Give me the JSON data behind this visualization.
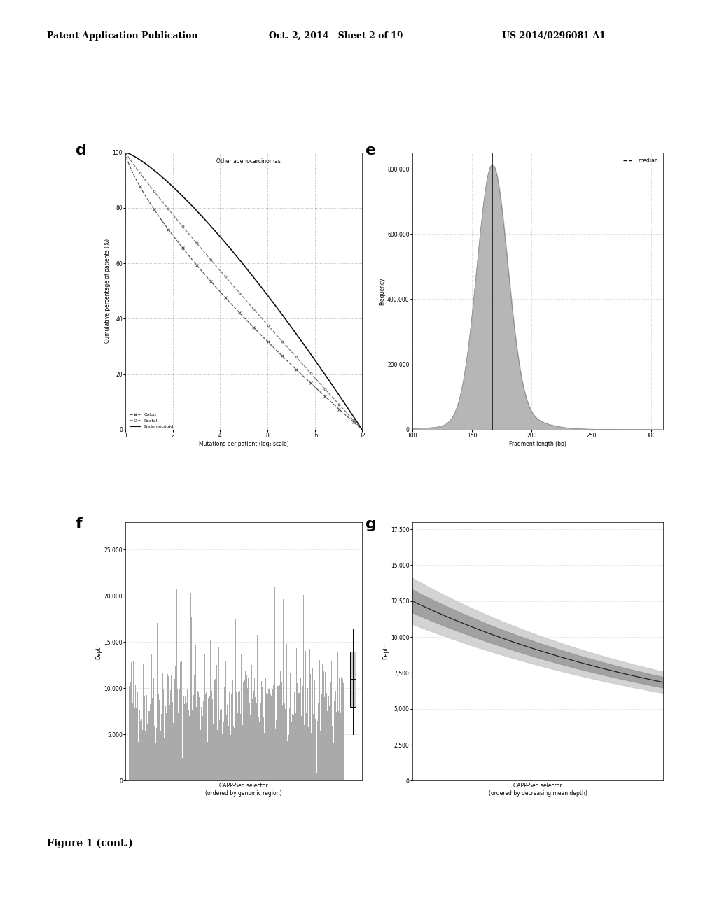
{
  "page_title_left": "Patent Application Publication",
  "page_title_mid": "Oct. 2, 2014   Sheet 2 of 19",
  "page_title_right": "US 2014/0296081 A1",
  "figure_label": "Figure 1 (cont.)",
  "bg_color": "#ffffff",
  "text_color": "#000000",
  "panel_d": {
    "label": "d",
    "title": "Other adenocarcinomas",
    "xlabel": "Mutations per patient (log₂ scale)",
    "ylabel": "Cumulative percentage of patients (%)",
    "yticks": [
      0,
      20,
      40,
      60,
      80,
      100
    ],
    "xticks": [
      1,
      2,
      4,
      8,
      16,
      32
    ],
    "xlim": [
      1,
      32
    ],
    "ylim": [
      0,
      100
    ],
    "legend": [
      "Colon",
      "Rectal",
      "Endometrioid"
    ]
  },
  "panel_e": {
    "label": "e",
    "xlabel": "Fragment length (bp)",
    "ylabel": "Frequency",
    "yticks": [
      0,
      200000,
      400000,
      600000,
      800000
    ],
    "ytick_labels": [
      "0",
      "200,000",
      "400,000",
      "600,000",
      "800,000"
    ],
    "xticks": [
      100,
      150,
      200,
      250,
      300
    ],
    "xlim": [
      100,
      310
    ],
    "ylim": [
      0,
      850000
    ],
    "median_x": 167,
    "legend": [
      "median"
    ]
  },
  "panel_f": {
    "label": "f",
    "xlabel": "CAPP-Seq selector\n(ordered by genomic region)",
    "ylabel": "Depth",
    "yticks": [
      0,
      5000,
      10000,
      15000,
      20000,
      25000
    ],
    "ytick_labels": [
      "0",
      "5,000",
      "10,000",
      "15,000",
      "20,000",
      "25,000"
    ],
    "ylim": [
      0,
      28000
    ],
    "n_bars": 300
  },
  "panel_g": {
    "label": "g",
    "xlabel": "CAPP-Seq selector\n(ordered by decreasing mean depth)",
    "ylabel": "Depth",
    "yticks": [
      0,
      2500,
      5000,
      7500,
      10000,
      12500,
      15000,
      17500
    ],
    "ytick_labels": [
      "0",
      "2,500",
      "5,000",
      "7,500",
      "10,000",
      "12,500",
      "15,000",
      "17,500"
    ],
    "ylim": [
      0,
      18000
    ],
    "n_points": 200
  }
}
